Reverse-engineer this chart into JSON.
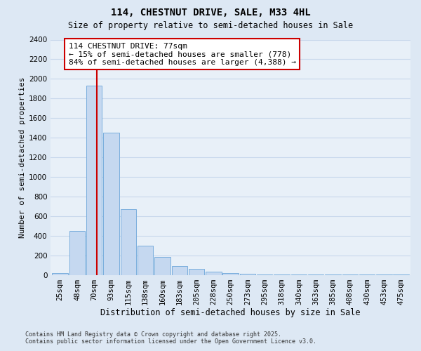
{
  "title": "114, CHESTNUT DRIVE, SALE, M33 4HL",
  "subtitle": "Size of property relative to semi-detached houses in Sale",
  "xlabel": "Distribution of semi-detached houses by size in Sale",
  "ylabel": "Number of semi-detached properties",
  "bin_labels": [
    "25sqm",
    "48sqm",
    "70sqm",
    "93sqm",
    "115sqm",
    "138sqm",
    "160sqm",
    "183sqm",
    "205sqm",
    "228sqm",
    "250sqm",
    "273sqm",
    "295sqm",
    "318sqm",
    "340sqm",
    "363sqm",
    "385sqm",
    "408sqm",
    "430sqm",
    "453sqm",
    "475sqm"
  ],
  "bar_values": [
    20,
    450,
    1930,
    1450,
    670,
    300,
    180,
    90,
    60,
    35,
    20,
    10,
    5,
    5,
    3,
    2,
    2,
    1,
    1,
    1,
    1
  ],
  "bar_color": "#c5d8f0",
  "bar_edge_color": "#7aaedd",
  "vline_color": "#cc0000",
  "vline_x": 2.15,
  "annotation_title": "114 CHESTNUT DRIVE: 77sqm",
  "annotation_line1": "← 15% of semi-detached houses are smaller (778)",
  "annotation_line2": "84% of semi-detached houses are larger (4,388) →",
  "annotation_box_fc": "#ffffff",
  "annotation_box_ec": "#cc0000",
  "ylim_max": 2400,
  "yticks": [
    0,
    200,
    400,
    600,
    800,
    1000,
    1200,
    1400,
    1600,
    1800,
    2000,
    2200,
    2400
  ],
  "footer_line1": "Contains HM Land Registry data © Crown copyright and database right 2025.",
  "footer_line2": "Contains public sector information licensed under the Open Government Licence v3.0.",
  "bg_color": "#dde8f4",
  "plot_bg_color": "#e8f0f8",
  "grid_color": "#c8d8ec",
  "title_fontsize": 10,
  "subtitle_fontsize": 8.5,
  "annotation_fontsize": 8,
  "ylabel_fontsize": 8,
  "xlabel_fontsize": 8.5,
  "tick_fontsize": 7.5,
  "footer_fontsize": 6
}
